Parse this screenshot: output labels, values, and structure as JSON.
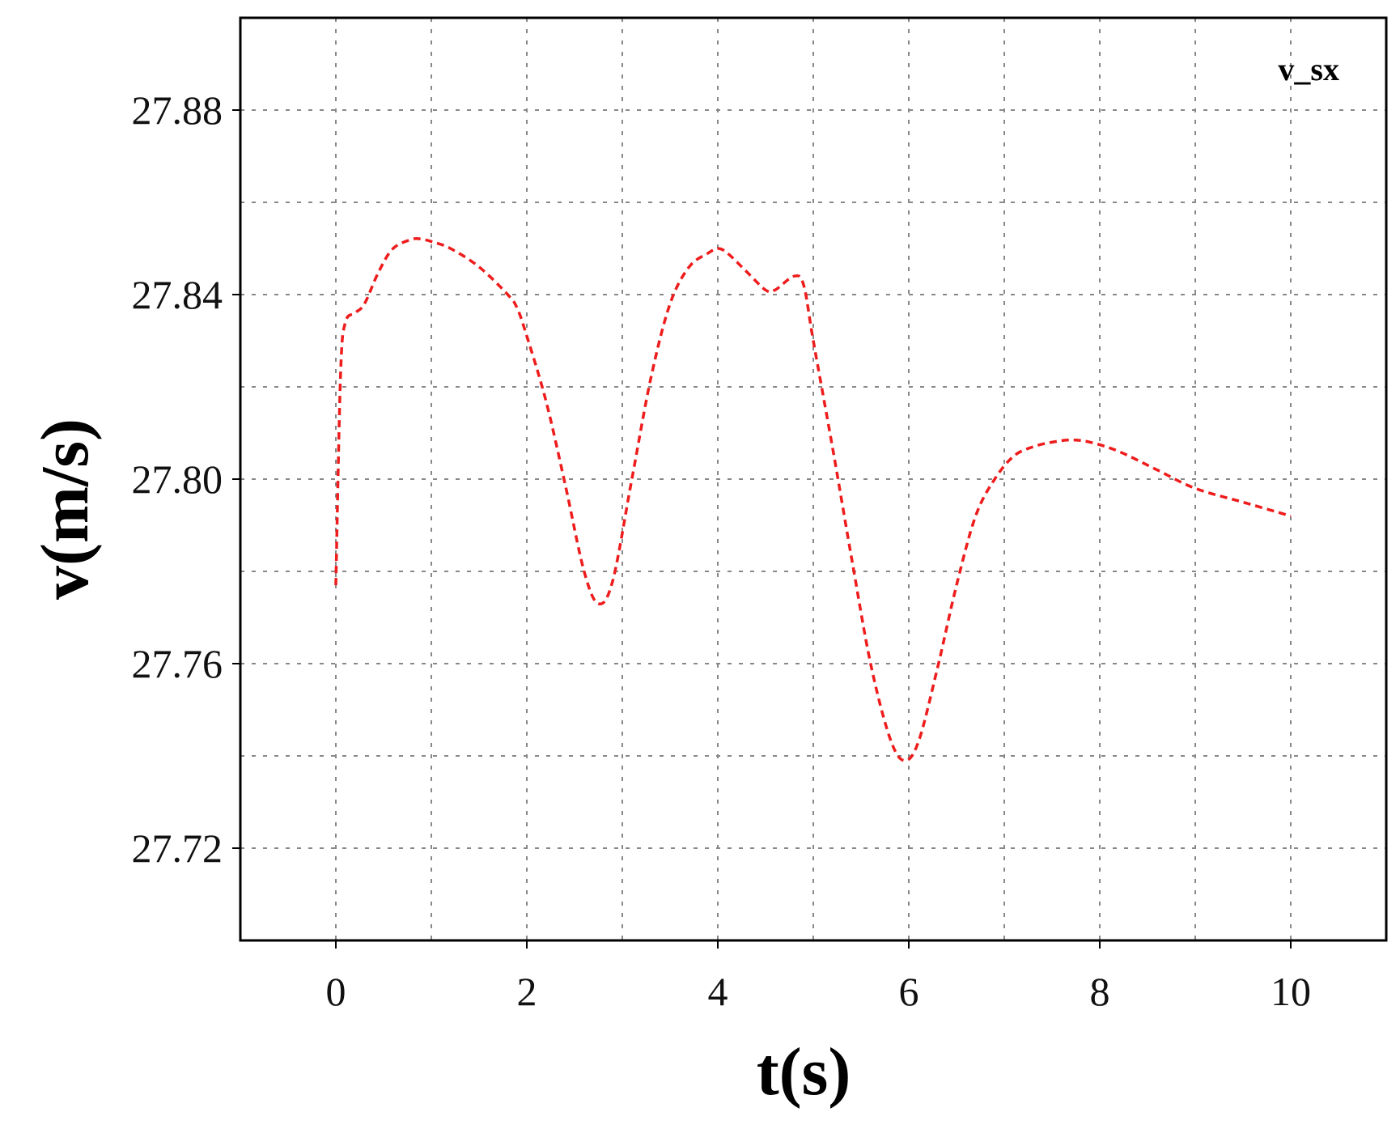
{
  "chart_data": {
    "type": "line",
    "title": "",
    "xlabel": "t(s)",
    "ylabel": "v(m/s)",
    "xlim": [
      -1,
      11
    ],
    "ylim": [
      27.7,
      27.9
    ],
    "x_ticks": [
      0,
      2,
      4,
      6,
      8,
      10
    ],
    "x_tick_labels": [
      "0",
      "2",
      "4",
      "6",
      "8",
      "10"
    ],
    "x_minor_grid": [
      1,
      3,
      5,
      7,
      9
    ],
    "y_ticks": [
      27.72,
      27.76,
      27.8,
      27.84,
      27.88
    ],
    "y_tick_labels": [
      "27.72",
      "27.76",
      "27.80",
      "27.84",
      "27.88"
    ],
    "y_minor_grid": [
      27.74,
      27.78,
      27.82,
      27.86
    ],
    "grid": true,
    "legend_position": "top-right",
    "colors": {
      "series": "#ee1c1c",
      "axes": "#000000",
      "grid": "#888888"
    },
    "series": [
      {
        "name": "v_sx",
        "style": "dashed",
        "x": [
          0.0,
          0.05,
          0.1,
          0.2,
          0.3,
          0.45,
          0.6,
          0.8,
          0.9,
          1.0,
          1.2,
          1.5,
          1.8,
          1.9,
          2.0,
          2.2,
          2.4,
          2.6,
          2.75,
          2.9,
          3.1,
          3.3,
          3.5,
          3.7,
          3.9,
          4.0,
          4.1,
          4.3,
          4.5,
          4.6,
          4.8,
          4.9,
          5.0,
          5.2,
          5.4,
          5.6,
          5.8,
          5.95,
          6.1,
          6.3,
          6.5,
          6.7,
          6.9,
          7.1,
          7.3,
          7.5,
          7.7,
          7.9,
          8.2,
          8.6,
          9.0,
          9.5,
          10.0
        ],
        "y": [
          27.777,
          27.823,
          27.834,
          27.836,
          27.838,
          27.845,
          27.85,
          27.852,
          27.852,
          27.8515,
          27.85,
          27.846,
          27.84,
          27.837,
          27.831,
          27.817,
          27.799,
          27.78,
          27.773,
          27.778,
          27.8,
          27.822,
          27.838,
          27.846,
          27.849,
          27.85,
          27.849,
          27.845,
          27.841,
          27.841,
          27.844,
          27.842,
          27.83,
          27.807,
          27.783,
          27.76,
          27.744,
          27.739,
          27.743,
          27.759,
          27.777,
          27.792,
          27.8,
          27.805,
          27.807,
          27.808,
          27.8085,
          27.808,
          27.806,
          27.802,
          27.798,
          27.795,
          27.792
        ]
      }
    ]
  }
}
